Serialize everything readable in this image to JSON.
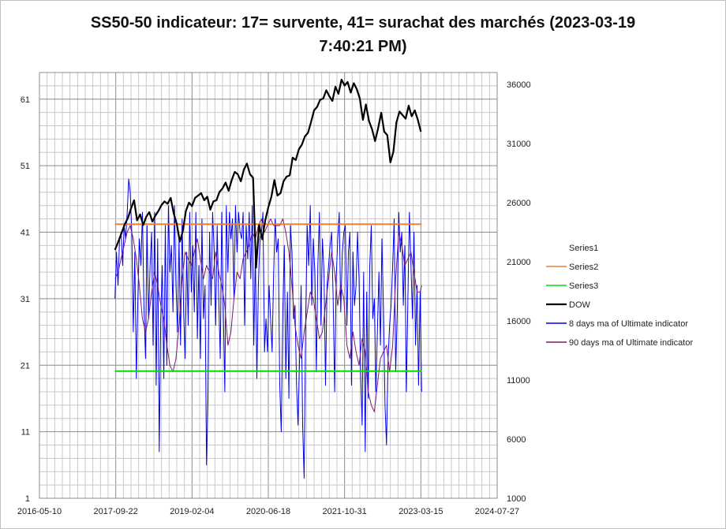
{
  "chart_data": {
    "type": "line",
    "title_line1": "SS50-50 indicateur: 17= survente, 41= surachat des marchés (2023-03-19",
    "title_line2": "7:40:21 PM)",
    "x_ticks": [
      "2016-05-10",
      "2017-09-22",
      "2019-02-04",
      "2020-06-18",
      "2021-10-31",
      "2023-03-15",
      "2024-07-27"
    ],
    "x_tick_days": [
      0,
      500,
      1000,
      1500,
      2000,
      2500,
      3000
    ],
    "xlim_days": [
      0,
      3000
    ],
    "y_left_ticks": [
      1,
      11,
      21,
      31,
      41,
      51,
      61
    ],
    "y_left_lim": [
      1,
      65
    ],
    "y_right_ticks": [
      1000,
      6000,
      11000,
      16000,
      21000,
      26000,
      31000,
      36000
    ],
    "y_right_lim": [
      1000,
      37000
    ],
    "colors": {
      "Series1": "#4472c4",
      "Series2": "#ed7d31",
      "Series3": "#00dd00",
      "DOW": "#000000",
      "ultimate8": "#0000ee",
      "ultimate90": "#7b1a6e"
    },
    "series": [
      {
        "name": "Series1",
        "axis": "left",
        "values": []
      },
      {
        "name": "Series2",
        "axis": "left",
        "x_days": [
          495,
          2505
        ],
        "values": [
          42.2,
          42.2
        ]
      },
      {
        "name": "Series3",
        "axis": "left",
        "x_days": [
          495,
          2505
        ],
        "values": [
          20.1,
          20.1
        ]
      },
      {
        "name": "DOW",
        "axis": "right",
        "x_days": [
          495,
          520,
          540,
          560,
          580,
          600,
          620,
          640,
          660,
          680,
          700,
          720,
          740,
          760,
          780,
          800,
          820,
          840,
          860,
          880,
          900,
          920,
          940,
          960,
          980,
          1000,
          1020,
          1040,
          1060,
          1080,
          1100,
          1120,
          1140,
          1160,
          1180,
          1200,
          1220,
          1240,
          1260,
          1280,
          1300,
          1320,
          1340,
          1360,
          1380,
          1400,
          1420,
          1440,
          1460,
          1480,
          1500,
          1520,
          1540,
          1560,
          1580,
          1600,
          1620,
          1640,
          1660,
          1680,
          1700,
          1720,
          1740,
          1760,
          1780,
          1800,
          1820,
          1840,
          1860,
          1880,
          1900,
          1920,
          1940,
          1960,
          1980,
          2000,
          2020,
          2040,
          2060,
          2080,
          2100,
          2120,
          2140,
          2160,
          2180,
          2200,
          2220,
          2240,
          2260,
          2280,
          2300,
          2320,
          2340,
          2360,
          2380,
          2400,
          2420,
          2440,
          2460,
          2480,
          2500
        ],
        "values": [
          22000,
          22800,
          23500,
          24200,
          24700,
          25500,
          26200,
          24500,
          25000,
          24100,
          24800,
          25200,
          24400,
          24900,
          25300,
          25800,
          26100,
          25900,
          26400,
          25100,
          24200,
          22700,
          23600,
          25300,
          26000,
          25700,
          26400,
          26600,
          26800,
          26200,
          26500,
          25400,
          26100,
          26200,
          26900,
          27200,
          27700,
          27000,
          27900,
          28600,
          28400,
          27800,
          28800,
          29300,
          28400,
          28100,
          20500,
          24100,
          22900,
          24500,
          25600,
          26500,
          27900,
          26600,
          26800,
          27800,
          28200,
          28300,
          29800,
          29600,
          30500,
          30900,
          31600,
          31900,
          32800,
          33800,
          34100,
          34700,
          34800,
          35500,
          35000,
          34600,
          35800,
          35200,
          36400,
          35900,
          36200,
          35300,
          36100,
          35600,
          34800,
          33000,
          34300,
          32900,
          32200,
          31200,
          32300,
          33600,
          32000,
          31700,
          29400,
          30300,
          32800,
          33700,
          33400,
          33100,
          34200,
          33300,
          33800,
          33000,
          32000
        ]
      },
      {
        "name": "8 days ma of Ultimate indicator",
        "axis": "left",
        "x_days": [
          495,
          505,
          515,
          525,
          535,
          545,
          555,
          565,
          575,
          585,
          595,
          605,
          615,
          625,
          635,
          645,
          655,
          665,
          675,
          685,
          695,
          705,
          715,
          725,
          735,
          745,
          755,
          765,
          775,
          785,
          795,
          805,
          815,
          825,
          835,
          845,
          855,
          865,
          875,
          885,
          895,
          905,
          915,
          925,
          935,
          945,
          955,
          965,
          975,
          985,
          995,
          1005,
          1015,
          1025,
          1035,
          1045,
          1055,
          1065,
          1075,
          1085,
          1095,
          1105,
          1115,
          1125,
          1135,
          1145,
          1155,
          1165,
          1175,
          1185,
          1195,
          1205,
          1215,
          1225,
          1235,
          1245,
          1255,
          1265,
          1275,
          1285,
          1295,
          1305,
          1315,
          1325,
          1335,
          1345,
          1355,
          1365,
          1375,
          1385,
          1395,
          1405,
          1415,
          1425,
          1435,
          1445,
          1455,
          1465,
          1475,
          1485,
          1495,
          1505,
          1515,
          1525,
          1535,
          1545,
          1555,
          1565,
          1575,
          1585,
          1595,
          1605,
          1615,
          1625,
          1635,
          1645,
          1655,
          1665,
          1675,
          1685,
          1695,
          1705,
          1715,
          1725,
          1735,
          1745,
          1755,
          1765,
          1775,
          1785,
          1795,
          1805,
          1815,
          1825,
          1835,
          1845,
          1855,
          1865,
          1875,
          1885,
          1895,
          1905,
          1915,
          1925,
          1935,
          1945,
          1955,
          1965,
          1975,
          1985,
          1995,
          2005,
          2015,
          2025,
          2035,
          2045,
          2055,
          2065,
          2075,
          2085,
          2095,
          2105,
          2115,
          2125,
          2135,
          2145,
          2155,
          2165,
          2175,
          2185,
          2195,
          2205,
          2215,
          2225,
          2235,
          2245,
          2255,
          2265,
          2275,
          2285,
          2295,
          2305,
          2315,
          2325,
          2335,
          2345,
          2355,
          2365,
          2375,
          2385,
          2395,
          2405,
          2415,
          2425,
          2435,
          2445,
          2455,
          2465,
          2475,
          2485,
          2495,
          2505
        ],
        "values": [
          31,
          38,
          33,
          40,
          41,
          36,
          42,
          40,
          44,
          49,
          47,
          41,
          26,
          38,
          19,
          31,
          40,
          36,
          44,
          30,
          22,
          42,
          28,
          36,
          41,
          24,
          44,
          18,
          40,
          8,
          28,
          36,
          19,
          42,
          21,
          45,
          35,
          39,
          29,
          45,
          33,
          26,
          40,
          24,
          43,
          29,
          22,
          38,
          27,
          44,
          32,
          39,
          29,
          44,
          25,
          36,
          22,
          43,
          28,
          33,
          6,
          16,
          41,
          30,
          44,
          38,
          27,
          42,
          31,
          22,
          44,
          29,
          17,
          45,
          35,
          44,
          40,
          43,
          31,
          45,
          38,
          44,
          41,
          40,
          44,
          27,
          42,
          37,
          44,
          34,
          45,
          24,
          38,
          19,
          33,
          40,
          41,
          44,
          23,
          28,
          23,
          33,
          28,
          23,
          35,
          43,
          38,
          40,
          18,
          11,
          29,
          39,
          19,
          32,
          16,
          42,
          38,
          28,
          30,
          18,
          12,
          22,
          33,
          12,
          4,
          28,
          42,
          36,
          45,
          30,
          40,
          35,
          20,
          36,
          44,
          27,
          40,
          35,
          18,
          33,
          36,
          39,
          41,
          31,
          17,
          34,
          40,
          44,
          29,
          38,
          41,
          42,
          27,
          38,
          41,
          18,
          38,
          30,
          33,
          41,
          34,
          20,
          12,
          35,
          8,
          32,
          16,
          36,
          42,
          28,
          31,
          17,
          26,
          35,
          24,
          40,
          29,
          15,
          9,
          22,
          27,
          30,
          36,
          43,
          20,
          29,
          44,
          38,
          41,
          30,
          39,
          17,
          31,
          44,
          36,
          28,
          41,
          24,
          33,
          18,
          32,
          17
        ]
      },
      {
        "name": "90 days ma of Ultimate indicator",
        "axis": "left",
        "x_days": [
          495,
          515,
          535,
          555,
          575,
          595,
          615,
          635,
          655,
          675,
          695,
          715,
          735,
          755,
          775,
          795,
          815,
          835,
          855,
          875,
          895,
          915,
          935,
          955,
          975,
          995,
          1015,
          1035,
          1055,
          1075,
          1095,
          1115,
          1135,
          1155,
          1175,
          1195,
          1215,
          1235,
          1255,
          1275,
          1295,
          1315,
          1335,
          1355,
          1375,
          1395,
          1415,
          1435,
          1455,
          1475,
          1495,
          1515,
          1535,
          1555,
          1575,
          1595,
          1615,
          1635,
          1655,
          1675,
          1695,
          1715,
          1735,
          1755,
          1775,
          1795,
          1815,
          1835,
          1855,
          1875,
          1895,
          1915,
          1935,
          1955,
          1975,
          1995,
          2015,
          2035,
          2055,
          2075,
          2095,
          2115,
          2135,
          2155,
          2175,
          2195,
          2215,
          2235,
          2255,
          2275,
          2295,
          2315,
          2335,
          2355,
          2375,
          2395,
          2415,
          2435,
          2455,
          2475,
          2495,
          2505
        ],
        "values": [
          34,
          35,
          37,
          39,
          41,
          42,
          40,
          37,
          33,
          28,
          26,
          28,
          32,
          35,
          33,
          30,
          28,
          24,
          21,
          20,
          22,
          27,
          34,
          38,
          37,
          36,
          38,
          40,
          37,
          34,
          36,
          35,
          34,
          38,
          35,
          33,
          30,
          24,
          26,
          31,
          35,
          34,
          37,
          38,
          39,
          41,
          40,
          42,
          43,
          41,
          42,
          43,
          42,
          42,
          42,
          43,
          41,
          38,
          33,
          27,
          24,
          22,
          26,
          29,
          32,
          31,
          28,
          25,
          26,
          30,
          34,
          38,
          35,
          30,
          33,
          31,
          24,
          22,
          26,
          23,
          21,
          25,
          23,
          17,
          15,
          14,
          18,
          22,
          23,
          24,
          20,
          24,
          34,
          41,
          39,
          36,
          37,
          38,
          35,
          32,
          32,
          33
        ]
      }
    ],
    "legend": [
      {
        "key": "Series1",
        "label": "Series1"
      },
      {
        "key": "Series2",
        "label": "Series2"
      },
      {
        "key": "Series3",
        "label": "Series3"
      },
      {
        "key": "DOW",
        "label": "DOW"
      },
      {
        "key": "ultimate8",
        "label": "8 days ma of Ultimate indicator"
      },
      {
        "key": "ultimate90",
        "label": "90 days ma of Ultimate indicator"
      }
    ],
    "grid": true,
    "legend_position": "right"
  }
}
